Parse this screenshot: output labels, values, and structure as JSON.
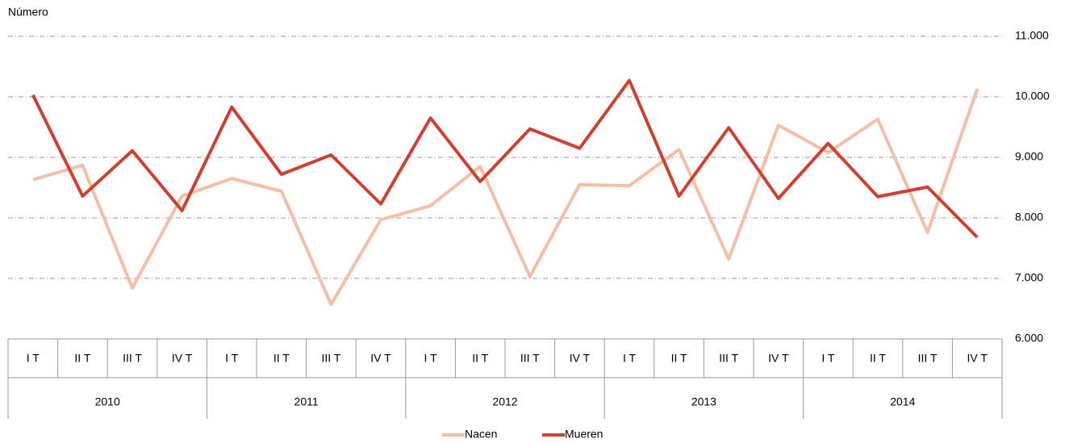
{
  "chart_data": {
    "type": "line",
    "y_label": "Número",
    "categories": [
      "I T",
      "II T",
      "III T",
      "IV T",
      "I T",
      "II T",
      "III T",
      "IV T",
      "I T",
      "II T",
      "III T",
      "IV T",
      "I T",
      "II T",
      "III T",
      "IV T",
      "I T",
      "II T",
      "III T",
      "IV T"
    ],
    "years": [
      "2010",
      "2011",
      "2012",
      "2013",
      "2014"
    ],
    "series": [
      {
        "name": "Nacen",
        "color": "#f4bfa5",
        "values": [
          8630,
          8870,
          6840,
          8360,
          8650,
          8440,
          6570,
          7970,
          8200,
          8850,
          7030,
          8550,
          8530,
          9130,
          7320,
          9530,
          9080,
          9630,
          7760,
          10130
        ]
      },
      {
        "name": "Mueren",
        "color": "#d0402f",
        "values": [
          10030,
          8360,
          9110,
          8120,
          9830,
          8720,
          9040,
          8230,
          9650,
          8600,
          9470,
          9150,
          10270,
          8360,
          9490,
          8320,
          9230,
          8350,
          8510,
          7680
        ]
      }
    ],
    "ylim": [
      6000,
      11000
    ],
    "yticks": [
      {
        "value": 6000,
        "label": "6.000"
      },
      {
        "value": 7000,
        "label": "7.000"
      },
      {
        "value": 8000,
        "label": "8.000"
      },
      {
        "value": 9000,
        "label": "9.000"
      },
      {
        "value": 10000,
        "label": "10.000"
      },
      {
        "value": 11000,
        "label": "11.000"
      }
    ],
    "grid": true,
    "legend": "bottom"
  }
}
